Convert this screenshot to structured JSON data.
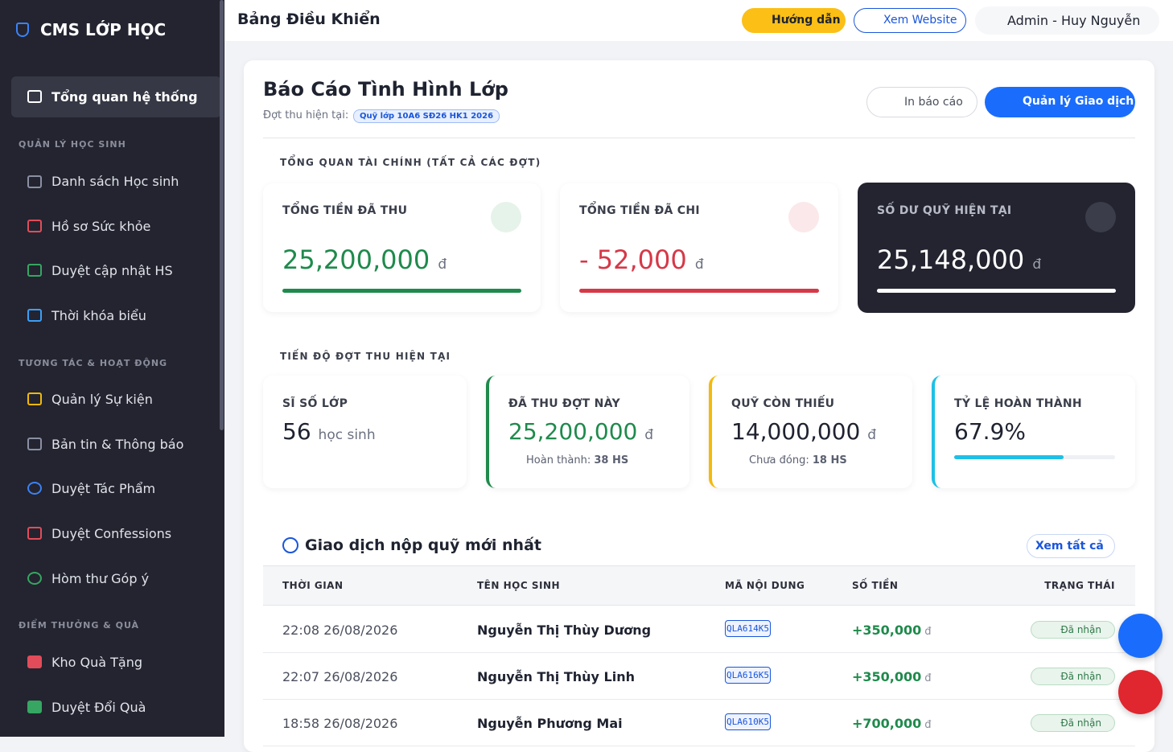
{
  "sidebar": {
    "brand": "CMS LỚP HỌC",
    "active": "Tổng quan hệ thống",
    "sections": [
      {
        "title": "QUẢN LÝ HỌC SINH",
        "items": [
          "Danh sách Học sinh",
          "Hồ sơ Sức khỏe",
          "Duyệt cập nhật HS",
          "Thời khóa biểu"
        ]
      },
      {
        "title": "TƯƠNG TÁC & HOẠT ĐỘNG",
        "items": [
          "Quản lý Sự kiện",
          "Bản tin & Thông báo",
          "Duyệt Tác Phẩm",
          "Duyệt Confessions",
          "Hòm thư Góp ý"
        ]
      },
      {
        "title": "ĐIỂM THƯỞNG & QUÀ",
        "items": [
          "Kho Quà Tặng",
          "Duyệt Đổi Quà"
        ]
      }
    ]
  },
  "topbar": {
    "title": "Bảng Điều Khiển",
    "guide": "Hướng dẫn",
    "website": "Xem Website",
    "user": "Admin - Huy Nguyễn"
  },
  "report": {
    "title": "Báo Cáo Tình Hình Lớp",
    "period_label": "Đợt thu hiện tại:",
    "period": "Quỹ lớp 10A6 SĐ26 HK1 2026",
    "print": "In báo cáo",
    "manage": "Quản lý Giao dịch"
  },
  "finance": {
    "heading": "TỔNG QUAN TÀI CHÍNH (TẤT CẢ CÁC ĐỢT)",
    "cards": [
      {
        "label": "TỔNG TIỀN ĐÃ THU",
        "value": "25,200,000",
        "unit": "đ"
      },
      {
        "label": "TỔNG TIỀN ĐÃ CHI",
        "value": "- 52,000",
        "unit": "đ"
      },
      {
        "label": "SỐ DƯ QUỸ HIỆN TẠI",
        "value": "25,148,000",
        "unit": "đ"
      }
    ]
  },
  "progress": {
    "heading": "TIẾN ĐỘ ĐỢT THU HIỆN TẠI",
    "class_size": {
      "label": "SĨ SỐ LỚP",
      "value": "56",
      "unit": "học sinh"
    },
    "collected": {
      "label": "ĐÃ THU ĐỢT NÀY",
      "value": "25,200,000",
      "unit": "đ",
      "note": "Hoàn thành:",
      "count": "38 HS"
    },
    "missing": {
      "label": "QUỸ CÒN THIẾU",
      "value": "14,000,000",
      "unit": "đ",
      "note": "Chưa đóng:",
      "count": "18 HS"
    },
    "rate": {
      "label": "TỶ LỆ HOÀN THÀNH",
      "value": "67.9%"
    }
  },
  "transactions": {
    "title": "Giao dịch nộp quỹ mới nhất",
    "view_all": "Xem tất cả",
    "columns": [
      "THỜI GIAN",
      "TÊN HỌC SINH",
      "MÃ NỘI DUNG",
      "SỐ TIỀN",
      "TRẠNG THÁI"
    ],
    "currency": "đ",
    "rows": [
      [
        "22:08 26/08/2026",
        "Nguyễn Thị Thùy Dương",
        "QLA614K5",
        "+350,000",
        "Đã nhận"
      ],
      [
        "22:07 26/08/2026",
        "Nguyễn Thị Thùy Linh",
        "QLA616K5",
        "+350,000",
        "Đã nhận"
      ],
      [
        "18:58 26/08/2026",
        "Nguyễn Phương Mai",
        "QLA610K5",
        "+700,000",
        "Đã nhận"
      ]
    ]
  }
}
